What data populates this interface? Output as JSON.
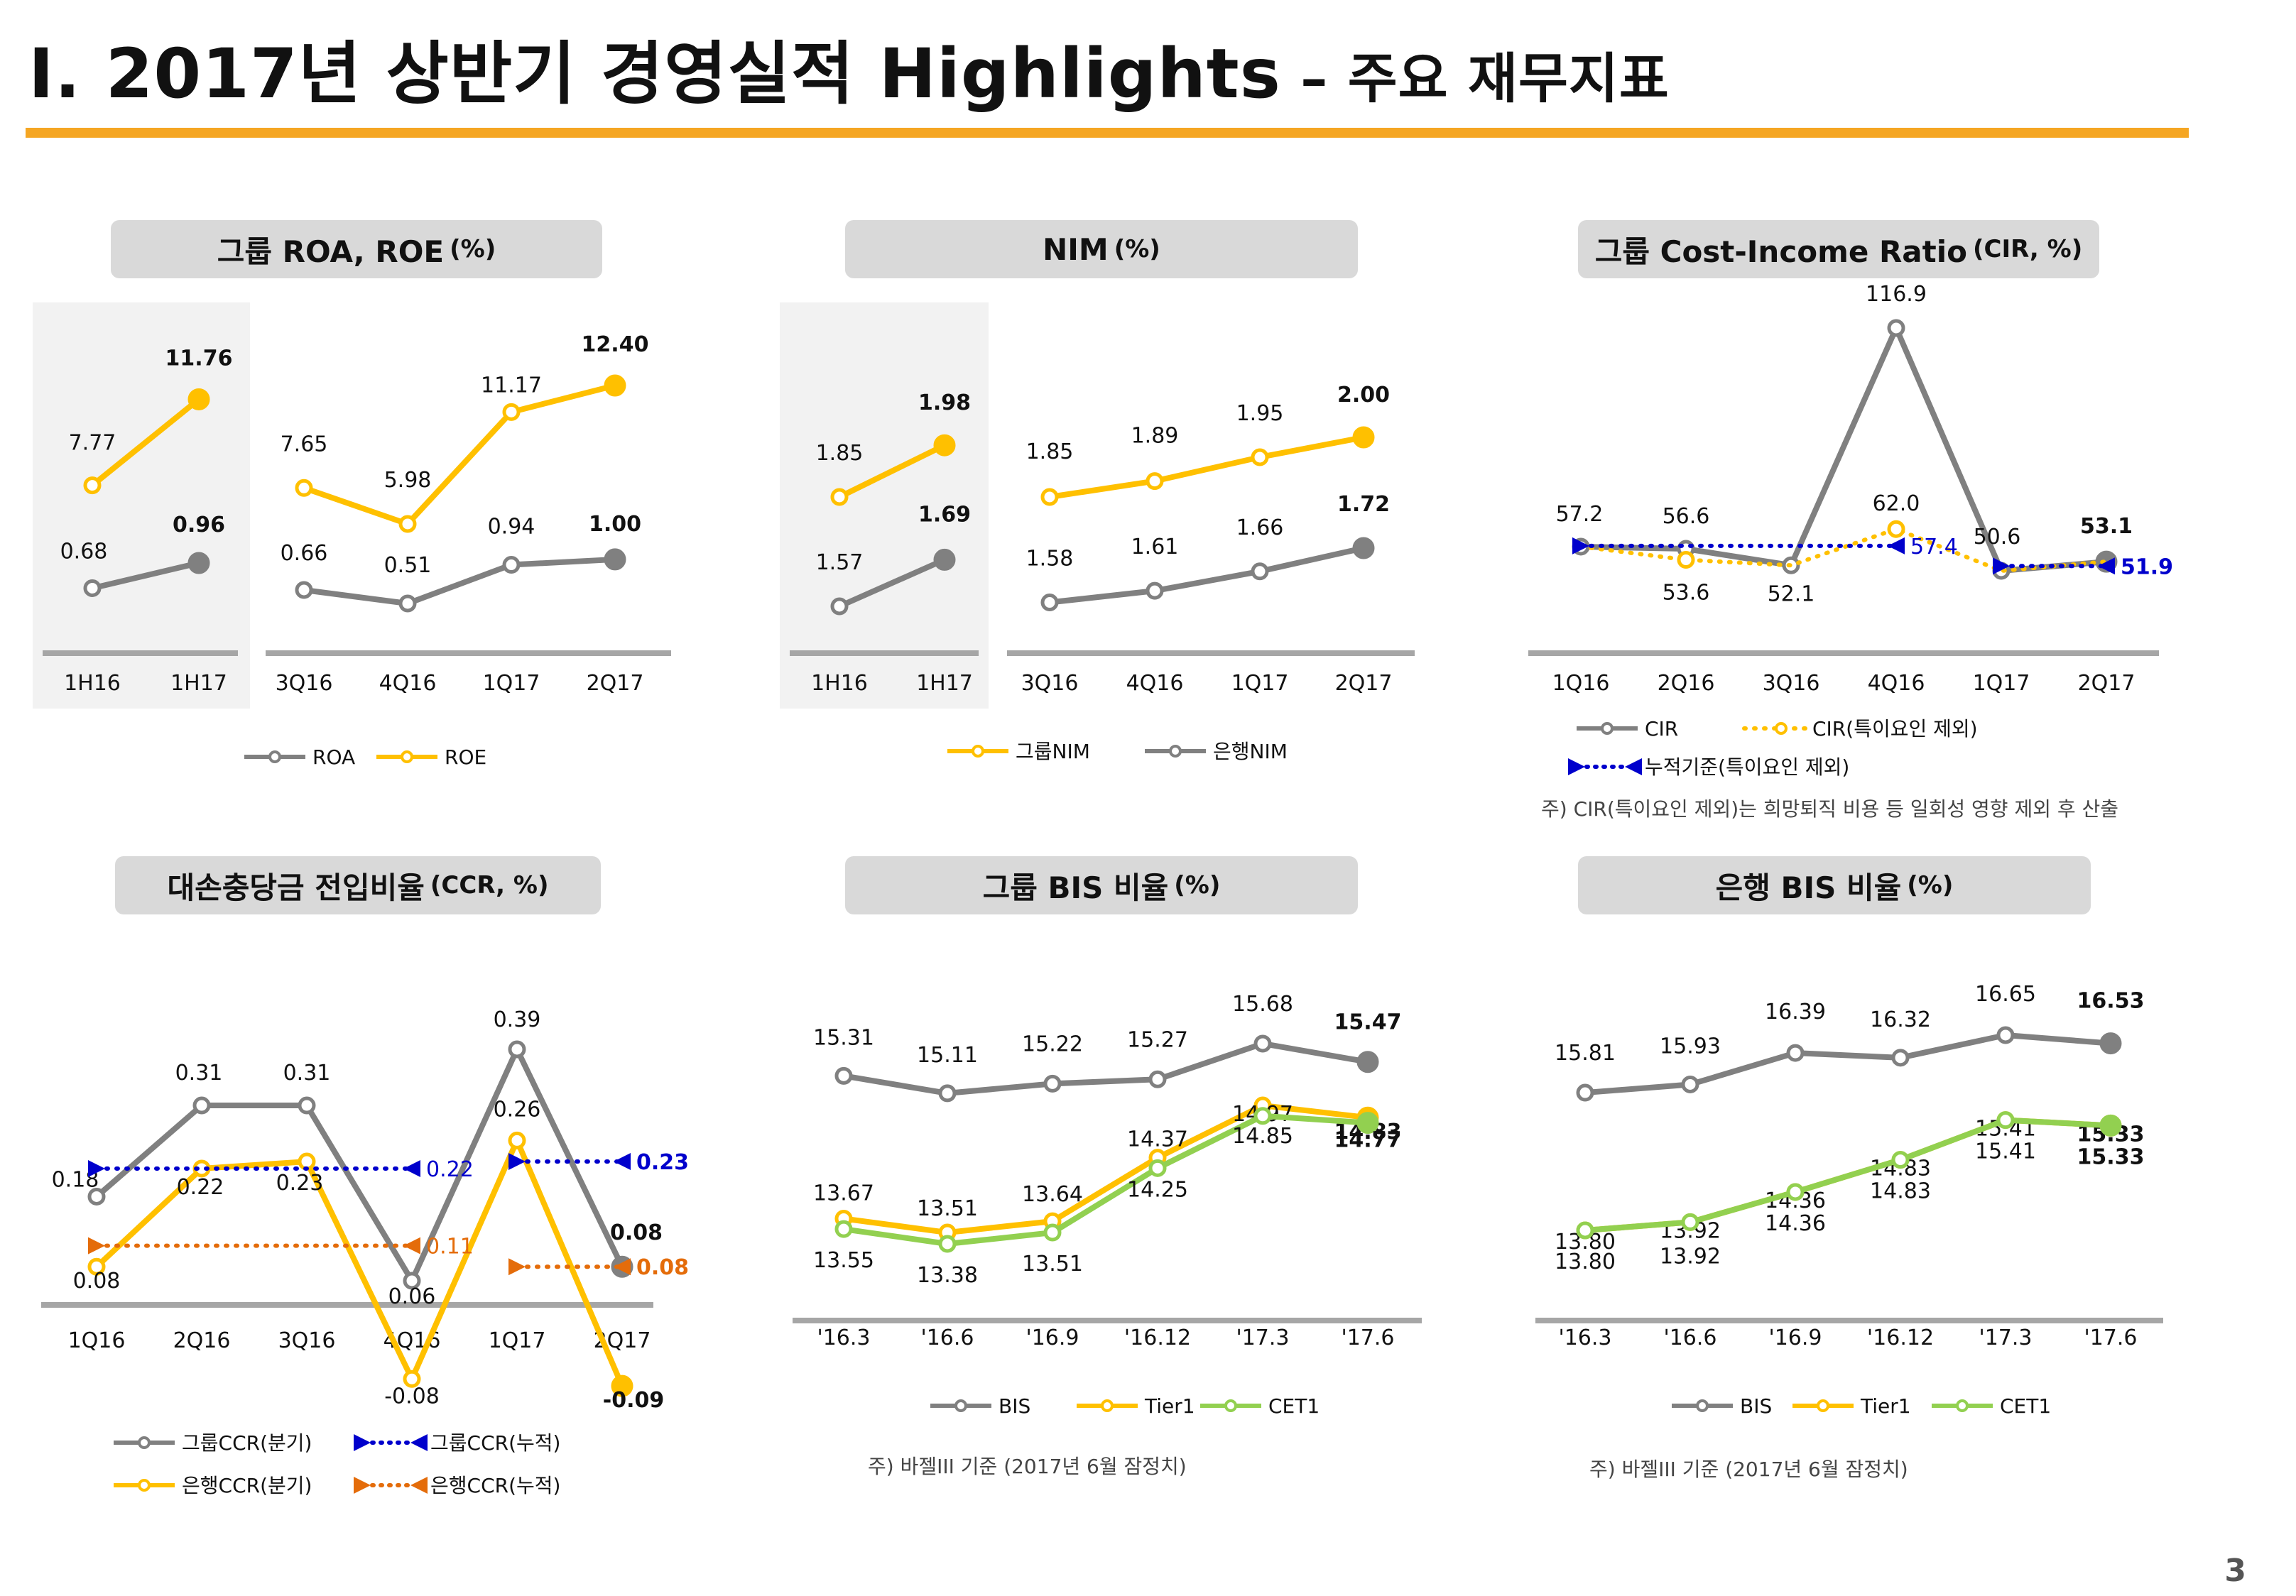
{
  "page": {
    "title_main": "Ⅰ. 2017년 상반기 경영실적 Highlights",
    "title_sub": " – 주요 재무지표",
    "page_number": "3"
  },
  "colors": {
    "accent": "#f5a623",
    "gray": "#808080",
    "yellow": "#ffc000",
    "green": "#92d050",
    "blue": "#0000cc",
    "orange": "#e46c0a"
  },
  "panels": {
    "roa": {
      "title": "그룹 ROA, ROE",
      "unit": "(%)"
    },
    "nim": {
      "title": "NIM",
      "unit": "(%)"
    },
    "cir": {
      "title": "그룹 Cost-Income Ratio",
      "unit": "(CIR, %)",
      "note": "주) CIR(특이요인 제외)는 희망퇴직 비용 등 일회성 영향 제외 후 산출"
    },
    "ccr": {
      "title": "대손충당금 전입비율",
      "unit": "(CCR, %)"
    },
    "group_bis": {
      "title": "그룹 BIS 비율",
      "unit": "(%)",
      "note": "주) 바젤III 기준 (2017년 6월 잠정치)"
    },
    "bank_bis": {
      "title": "은행 BIS 비율",
      "unit": "(%)",
      "note": "주) 바젤III 기준 (2017년 6월 잠정치)"
    }
  },
  "chart_data": [
    {
      "id": "roa",
      "type": "line",
      "categories": [
        "1H16",
        "1H17",
        "3Q16",
        "4Q16",
        "1Q17",
        "2Q17"
      ],
      "series": [
        {
          "name": "ROA",
          "color": "#808080",
          "values": [
            0.68,
            0.96,
            0.66,
            0.51,
            0.94,
            1.0
          ],
          "labels": [
            "0.68",
            "0.96",
            "0.66",
            "0.51",
            "0.94",
            "1.00"
          ]
        },
        {
          "name": "ROE",
          "color": "#ffc000",
          "values": [
            7.77,
            11.76,
            7.65,
            5.98,
            11.17,
            12.4
          ],
          "labels": [
            "7.77",
            "11.76",
            "7.65",
            "5.98",
            "11.17",
            "12.40"
          ]
        }
      ],
      "legend": "bottom"
    },
    {
      "id": "nim",
      "type": "line",
      "categories": [
        "1H16",
        "1H17",
        "3Q16",
        "4Q16",
        "1Q17",
        "2Q17"
      ],
      "series": [
        {
          "name": "그룹NIM",
          "color": "#ffc000",
          "values": [
            1.85,
            1.98,
            1.85,
            1.89,
            1.95,
            2.0
          ],
          "labels": [
            "1.85",
            "1.98",
            "1.85",
            "1.89",
            "1.95",
            "2.00"
          ]
        },
        {
          "name": "은행NIM",
          "color": "#808080",
          "values": [
            1.57,
            1.69,
            1.58,
            1.61,
            1.66,
            1.72
          ],
          "labels": [
            "1.57",
            "1.69",
            "1.58",
            "1.61",
            "1.66",
            "1.72"
          ]
        }
      ],
      "legend": "bottom"
    },
    {
      "id": "cir",
      "type": "line",
      "categories": [
        "1Q16",
        "2Q16",
        "3Q16",
        "4Q16",
        "1Q17",
        "2Q17"
      ],
      "series": [
        {
          "name": "CIR",
          "color": "#808080",
          "values": [
            57.2,
            56.6,
            52.1,
            116.9,
            50.6,
            53.1
          ],
          "labels": [
            "57.2",
            "56.6",
            "52.1",
            "116.9",
            "50.6",
            "53.1"
          ]
        },
        {
          "name": "CIR(특이요인 제외)",
          "color": "#ffc000",
          "values": [
            57.2,
            53.6,
            52.1,
            62.0,
            50.6,
            53.1
          ],
          "labels": [
            "",
            "53.6",
            "",
            "62.0",
            "",
            ""
          ]
        },
        {
          "name": "누적기준(특이요인 제외)",
          "color": "#0000cc",
          "segments": [
            {
              "from": "1Q16",
              "to": "4Q16",
              "value": 57.4
            },
            {
              "from": "1Q17",
              "to": "2Q17",
              "value": 51.9
            }
          ]
        }
      ],
      "legend": "bottom"
    },
    {
      "id": "ccr",
      "type": "line",
      "categories": [
        "1Q16",
        "2Q16",
        "3Q16",
        "4Q16",
        "1Q17",
        "2Q17"
      ],
      "series": [
        {
          "name": "그룹CCR(분기)",
          "color": "#808080",
          "values": [
            0.18,
            0.31,
            0.31,
            0.06,
            0.39,
            0.08
          ],
          "labels": [
            "0.18",
            "0.31",
            "0.31",
            "0.06",
            "0.39",
            "0.08"
          ]
        },
        {
          "name": "은행CCR(분기)",
          "color": "#ffc000",
          "values": [
            0.08,
            0.22,
            0.23,
            -0.08,
            0.26,
            -0.09
          ],
          "labels": [
            "0.08",
            "0.22",
            "0.23",
            "-0.08",
            "0.26",
            "-0.09"
          ]
        },
        {
          "name": "그룹CCR(누적)",
          "color": "#0000cc",
          "segments": [
            {
              "from": "1Q16",
              "to": "4Q16",
              "value": 0.22
            },
            {
              "from": "1Q17",
              "to": "2Q17",
              "value": 0.23
            }
          ]
        },
        {
          "name": "은행CCR(누적)",
          "color": "#e46c0a",
          "segments": [
            {
              "from": "1Q16",
              "to": "4Q16",
              "value": 0.11
            },
            {
              "from": "1Q17",
              "to": "2Q17",
              "value": 0.08
            }
          ]
        }
      ],
      "legend": "bottom"
    },
    {
      "id": "group_bis",
      "type": "line",
      "categories": [
        "'16.3",
        "'16.6",
        "'16.9",
        "'16.12",
        "'17.3",
        "'17.6"
      ],
      "series": [
        {
          "name": "BIS",
          "color": "#808080",
          "values": [
            15.31,
            15.11,
            15.22,
            15.27,
            15.68,
            15.47
          ],
          "labels": [
            "15.31",
            "15.11",
            "15.22",
            "15.27",
            "15.68",
            "15.47"
          ]
        },
        {
          "name": "Tier1",
          "color": "#ffc000",
          "values": [
            13.67,
            13.51,
            13.64,
            14.37,
            14.97,
            14.83
          ],
          "labels": [
            "13.67",
            "13.51",
            "13.64",
            "14.37",
            "14.97",
            "14.83"
          ]
        },
        {
          "name": "CET1",
          "color": "#92d050",
          "values": [
            13.55,
            13.38,
            13.51,
            14.25,
            14.85,
            14.77
          ],
          "labels": [
            "13.55",
            "13.38",
            "13.51",
            "14.25",
            "14.85",
            "14.77"
          ]
        }
      ],
      "legend": "bottom"
    },
    {
      "id": "bank_bis",
      "type": "line",
      "categories": [
        "'16.3",
        "'16.6",
        "'16.9",
        "'16.12",
        "'17.3",
        "'17.6"
      ],
      "series": [
        {
          "name": "BIS",
          "color": "#808080",
          "values": [
            15.81,
            15.93,
            16.39,
            16.32,
            16.65,
            16.53
          ],
          "labels": [
            "15.81",
            "15.93",
            "16.39",
            "16.32",
            "16.65",
            "16.53"
          ]
        },
        {
          "name": "Tier1",
          "color": "#ffc000",
          "values": [
            13.8,
            13.92,
            14.36,
            14.83,
            15.41,
            15.33
          ],
          "labels": [
            "13.80",
            "13.92",
            "14.36",
            "14.83",
            "15.41",
            "15.33"
          ]
        },
        {
          "name": "CET1",
          "color": "#92d050",
          "values": [
            13.8,
            13.92,
            14.36,
            14.83,
            15.41,
            15.33
          ],
          "labels": [
            "13.80",
            "13.92",
            "14.36",
            "14.83",
            "15.41",
            "15.33"
          ]
        }
      ],
      "legend": "bottom"
    }
  ]
}
